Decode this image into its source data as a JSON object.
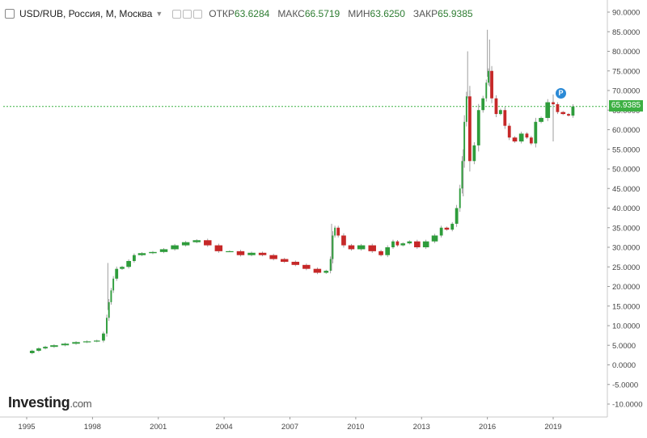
{
  "header": {
    "title": "USD/RUB, Россия, М, Москва",
    "ohlc": [
      {
        "label": "ОТКР",
        "value": "63.6284"
      },
      {
        "label": "МАКС",
        "value": "66.5719"
      },
      {
        "label": "МИН",
        "value": "63.6250"
      },
      {
        "label": "ЗАКР",
        "value": "65.9385"
      }
    ]
  },
  "logo": {
    "brand": "Investing",
    "suffix": ".com"
  },
  "price_tag": "65.9385",
  "marker_label": "P",
  "colors": {
    "up": "#2e9c3b",
    "down": "#c62828",
    "last_price": "#3cb043",
    "marker": "#2b8ad6"
  },
  "chart_data": {
    "type": "candlestick",
    "x_ticks": [
      "1995",
      "1998",
      "2001",
      "2004",
      "2007",
      "2010",
      "2013",
      "2016",
      "2019"
    ],
    "y_ticks": [
      "90.0000",
      "85.0000",
      "80.0000",
      "75.0000",
      "70.0000",
      "65.0000",
      "60.0000",
      "55.0000",
      "50.0000",
      "45.0000",
      "40.0000",
      "35.0000",
      "30.0000",
      "25.0000",
      "20.0000",
      "15.0000",
      "10.0000",
      "5.0000",
      "0.0000",
      "-5.0000",
      "-10.0000"
    ],
    "ylim": [
      -12,
      92
    ],
    "xlim": [
      1995.0,
      2021.6
    ],
    "last_price": 65.9385,
    "grid": false,
    "series": [
      [
        1995.1,
        3.0
      ],
      [
        1995.4,
        3.6
      ],
      [
        1995.7,
        4.2
      ],
      [
        1996.0,
        4.6
      ],
      [
        1996.5,
        5.0
      ],
      [
        1997.0,
        5.4
      ],
      [
        1997.5,
        5.8
      ],
      [
        1998.0,
        6.0
      ],
      [
        1998.4,
        6.2
      ],
      [
        1998.6,
        8.0
      ],
      [
        1998.7,
        12.0
      ],
      [
        1998.8,
        16.0
      ],
      [
        1998.9,
        19.0
      ],
      [
        1999.0,
        22.0
      ],
      [
        1999.2,
        24.5
      ],
      [
        1999.5,
        25.0
      ],
      [
        1999.8,
        26.5
      ],
      [
        2000.0,
        28.0
      ],
      [
        2000.5,
        28.5
      ],
      [
        2001.0,
        28.8
      ],
      [
        2001.5,
        29.5
      ],
      [
        2002.0,
        30.5
      ],
      [
        2002.5,
        31.3
      ],
      [
        2003.0,
        31.8
      ],
      [
        2003.5,
        30.5
      ],
      [
        2004.0,
        29.0
      ],
      [
        2004.5,
        29.0
      ],
      [
        2005.0,
        28.0
      ],
      [
        2005.5,
        28.6
      ],
      [
        2006.0,
        28.0
      ],
      [
        2006.5,
        27.0
      ],
      [
        2007.0,
        26.3
      ],
      [
        2007.5,
        25.5
      ],
      [
        2008.0,
        24.5
      ],
      [
        2008.5,
        23.5
      ],
      [
        2008.8,
        24.0
      ],
      [
        2008.9,
        27.0
      ],
      [
        2009.0,
        33.0
      ],
      [
        2009.1,
        35.0
      ],
      [
        2009.3,
        33.0
      ],
      [
        2009.6,
        30.5
      ],
      [
        2010.0,
        29.5
      ],
      [
        2010.5,
        30.5
      ],
      [
        2011.0,
        29.0
      ],
      [
        2011.3,
        28.0
      ],
      [
        2011.6,
        30.0
      ],
      [
        2011.8,
        31.5
      ],
      [
        2012.0,
        30.5
      ],
      [
        2012.3,
        31.0
      ],
      [
        2012.6,
        31.5
      ],
      [
        2013.0,
        30.0
      ],
      [
        2013.4,
        31.5
      ],
      [
        2013.8,
        33.0
      ],
      [
        2014.0,
        35.0
      ],
      [
        2014.3,
        34.5
      ],
      [
        2014.5,
        36.0
      ],
      [
        2014.7,
        40.0
      ],
      [
        2014.8,
        45.0
      ],
      [
        2014.9,
        52.0
      ],
      [
        2015.0,
        62.0
      ],
      [
        2015.1,
        68.5
      ],
      [
        2015.3,
        52.0
      ],
      [
        2015.5,
        56.0
      ],
      [
        2015.7,
        65.0
      ],
      [
        2015.9,
        68.0
      ],
      [
        2016.0,
        72.0
      ],
      [
        2016.1,
        75.0
      ],
      [
        2016.3,
        68.0
      ],
      [
        2016.5,
        64.0
      ],
      [
        2016.7,
        65.0
      ],
      [
        2016.9,
        61.0
      ],
      [
        2017.1,
        58.0
      ],
      [
        2017.4,
        57.0
      ],
      [
        2017.7,
        59.0
      ],
      [
        2017.9,
        58.0
      ],
      [
        2018.1,
        56.5
      ],
      [
        2018.3,
        62.0
      ],
      [
        2018.6,
        63.0
      ],
      [
        2018.9,
        67.0
      ],
      [
        2019.1,
        66.5
      ],
      [
        2019.3,
        64.5
      ],
      [
        2019.6,
        64.0
      ],
      [
        2019.8,
        63.6
      ],
      [
        2020.0,
        65.9385
      ]
    ],
    "spikes": [
      [
        1998.7,
        26.0
      ],
      [
        2008.9,
        36.0
      ],
      [
        2014.9,
        55.0
      ],
      [
        2015.1,
        80.0
      ],
      [
        2015.2,
        70.0
      ],
      [
        2016.0,
        85.5
      ],
      [
        2016.1,
        83.0
      ],
      [
        2019.0,
        69.0
      ]
    ]
  }
}
